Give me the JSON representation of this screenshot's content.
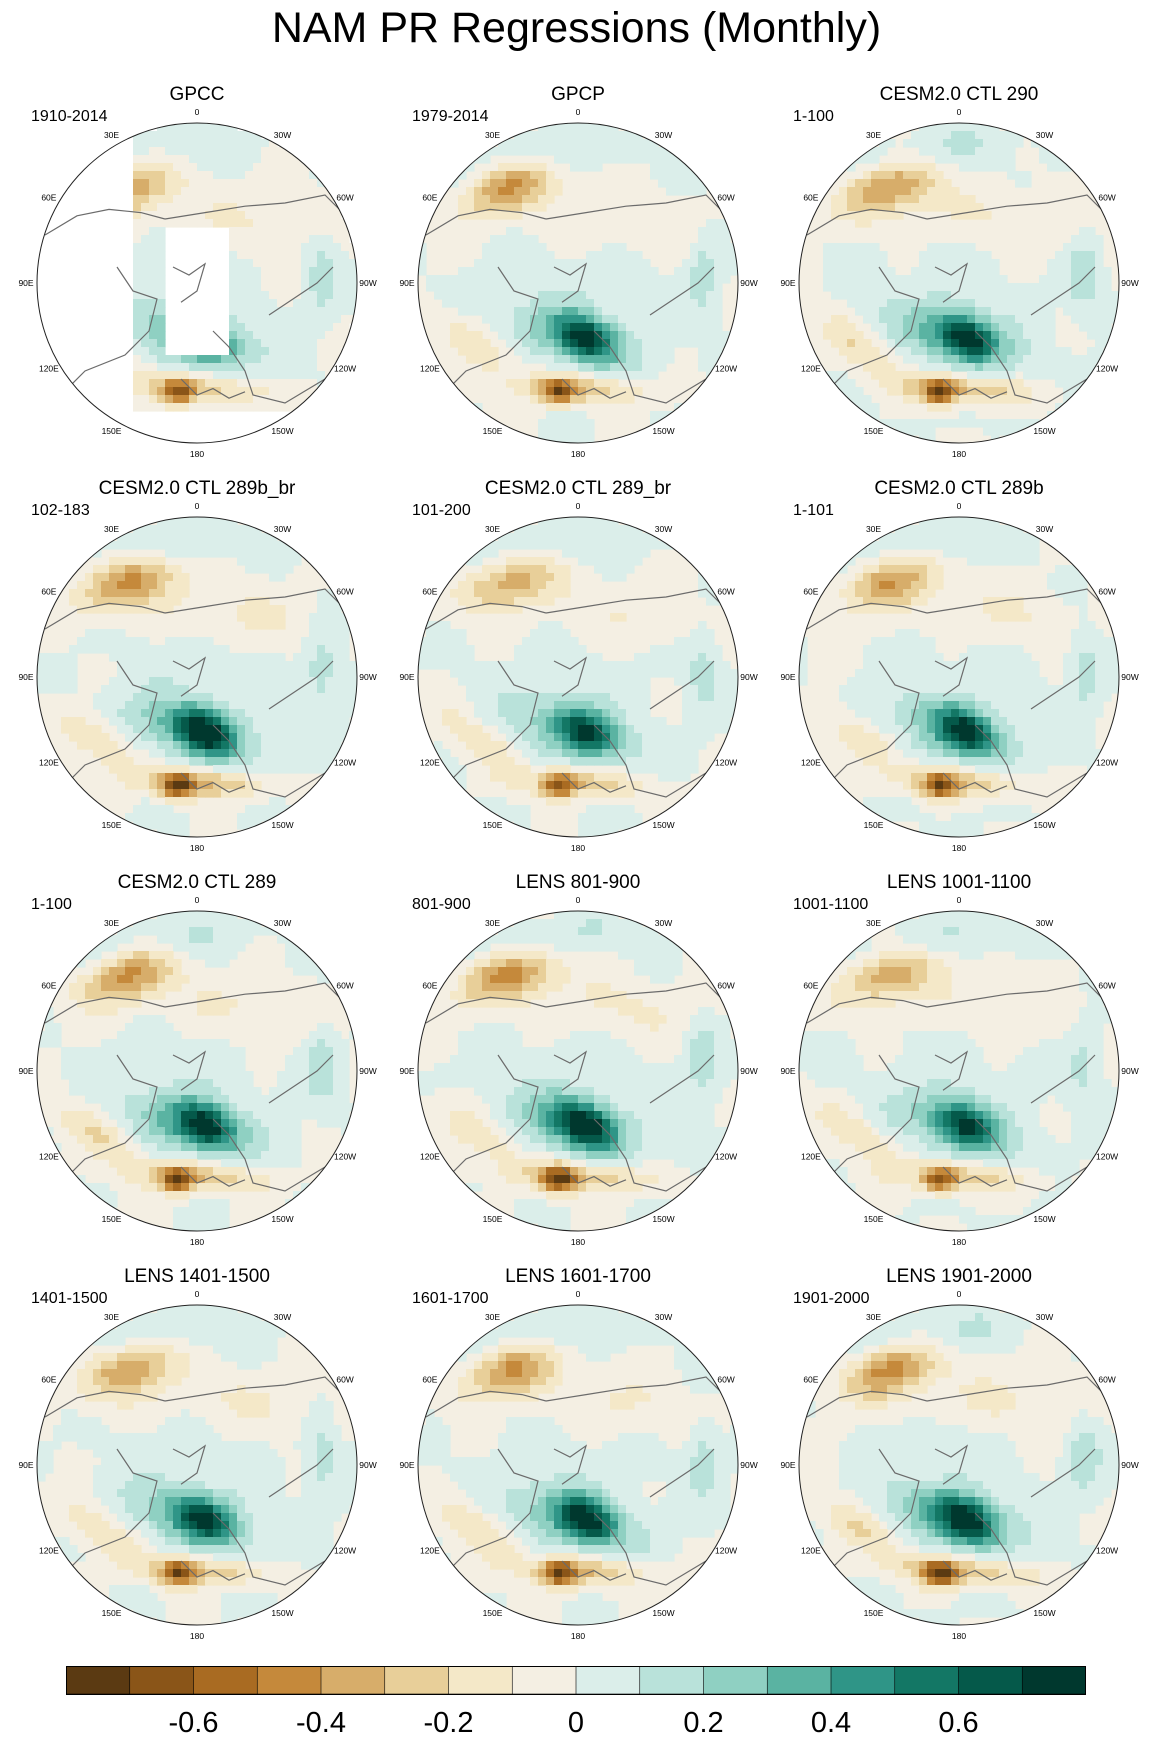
{
  "title": "NAM PR Regressions (Monthly)",
  "chart_data": {
    "type": "contour-map-grid",
    "projection": "north polar stereographic",
    "longitude_labels": [
      "180",
      "150E",
      "120E",
      "90E",
      "60E",
      "30E",
      "0",
      "30W",
      "60W",
      "90W",
      "120W",
      "150W"
    ],
    "panels": [
      {
        "title": "GPCC",
        "period": "1910-2014",
        "land_only": true
      },
      {
        "title": "GPCP",
        "period": "1979-2014"
      },
      {
        "title": "CESM2.0 CTL 290",
        "period": "1-100"
      },
      {
        "title": "CESM2.0 CTL 289b_br",
        "period": "102-183"
      },
      {
        "title": "CESM2.0 CTL 289_br",
        "period": "101-200"
      },
      {
        "title": "CESM2.0 CTL 289b",
        "period": "1-101"
      },
      {
        "title": "CESM2.0 CTL 289",
        "period": "1-100"
      },
      {
        "title": "LENS 801-900",
        "period": "801-900"
      },
      {
        "title": "LENS 1001-1100",
        "period": "1001-1100"
      },
      {
        "title": "LENS 1401-1500",
        "period": "1401-1500"
      },
      {
        "title": "LENS 1601-1700",
        "period": "1601-1700"
      },
      {
        "title": "LENS 1901-2000",
        "period": "1901-2000"
      }
    ],
    "colorbar": {
      "levels": [
        -0.7,
        -0.6,
        -0.5,
        -0.4,
        -0.3,
        -0.2,
        -0.1,
        0,
        0.1,
        0.2,
        0.3,
        0.4,
        0.5,
        0.6,
        0.7
      ],
      "tick_labels": [
        "-0.6",
        "-0.4",
        "-0.2",
        "0",
        "0.2",
        "0.4",
        "0.6"
      ],
      "tick_values": [
        -0.6,
        -0.4,
        -0.2,
        0,
        0.2,
        0.4,
        0.6
      ],
      "colors": [
        "#5b3a12",
        "#8a5518",
        "#a96b22",
        "#c5893b",
        "#d7ad6a",
        "#e8cf99",
        "#f4e8c8",
        "#f4efe3",
        "#dbeeea",
        "#b9e2da",
        "#8fd0c2",
        "#5ab3a2",
        "#2f9587",
        "#137765",
        "#05594a",
        "#00382e"
      ]
    }
  }
}
